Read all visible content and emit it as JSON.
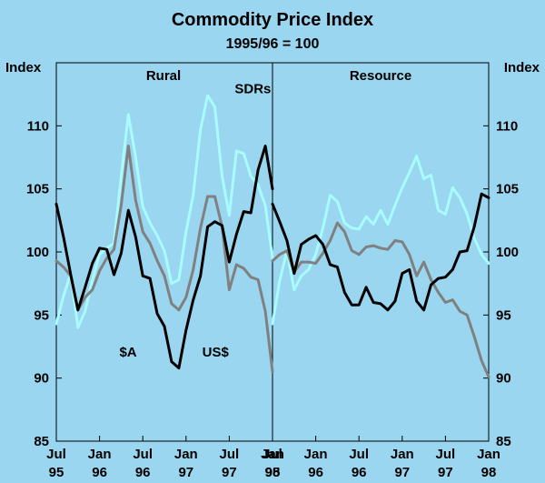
{
  "chart_data": {
    "type": "line",
    "title": "Commodity Price Index",
    "subtitle": "1995/96 = 100",
    "ylabel_left": "Index",
    "ylabel_right": "Index",
    "ylim": [
      85,
      115
    ],
    "yticks": [
      85,
      90,
      95,
      100,
      105,
      110
    ],
    "x_tick_labels": [
      {
        "month": "Jul",
        "year": "95"
      },
      {
        "month": "Jan",
        "year": "96"
      },
      {
        "month": "Jul",
        "year": "96"
      },
      {
        "month": "Jan",
        "year": "97"
      },
      {
        "month": "Jul",
        "year": "97"
      },
      {
        "month": "Jan",
        "year": "98"
      }
    ],
    "colors": {
      "background": "#9ad6f0",
      "aud": "#000000",
      "usd": "#808080",
      "sdr": "#a8fbff",
      "grid": "#000000"
    },
    "panels": [
      {
        "name": "Rural",
        "annotations": [
          {
            "text": "SDRs",
            "series": "SDRs"
          },
          {
            "text": "$A",
            "series": "$A"
          },
          {
            "text": "US$",
            "series": "US$"
          }
        ],
        "series": [
          {
            "name": "$A",
            "color": "#000000",
            "values": [
              103.8,
              101.2,
              98.2,
              95.4,
              97.2,
              99.1,
              100.3,
              100.2,
              98.2,
              99.9,
              103.3,
              101.2,
              98.1,
              97.9,
              95.1,
              94.1,
              91.3,
              90.8,
              93.8,
              96.2,
              98.1,
              102.0,
              102.4,
              102.1,
              99.2,
              101.4,
              103.2,
              103.1,
              106.5,
              108.4,
              105.0
            ]
          },
          {
            "name": "US$",
            "color": "#808080",
            "values": [
              99.3,
              98.8,
              98.1,
              95.4,
              96.4,
              97.0,
              98.5,
              99.5,
              100.2,
              103.7,
              108.4,
              104.1,
              101.6,
              100.7,
              99.3,
              98.1,
              95.9,
              95.4,
              96.4,
              98.6,
              101.9,
              104.4,
              104.4,
              102.0,
              97.0,
              99.0,
              98.7,
              98.0,
              97.8,
              95.3,
              90.5
            ]
          },
          {
            "name": "SDRs",
            "color": "#a8fbff",
            "values": [
              94.3,
              96.5,
              98.3,
              94.0,
              95.3,
              97.8,
              99.8,
              100.3,
              100.7,
              106.0,
              110.9,
              107.5,
              103.6,
              102.3,
              101.3,
              100.1,
              97.5,
              97.8,
              101.6,
              104.5,
              109.7,
              112.4,
              111.5,
              106.0,
              102.9,
              108.0,
              107.8,
              106.0,
              105.3,
              103.7,
              99.5
            ]
          }
        ]
      },
      {
        "name": "Resource",
        "annotations": [],
        "series": [
          {
            "name": "$A",
            "color": "#000000",
            "values": [
              103.8,
              102.4,
              100.9,
              98.3,
              100.6,
              101.0,
              101.3,
              100.6,
              99.0,
              98.8,
              96.8,
              95.8,
              95.8,
              97.2,
              96.0,
              95.9,
              95.4,
              96.1,
              98.3,
              98.6,
              96.1,
              95.4,
              97.4,
              97.9,
              98.0,
              98.6,
              100.0,
              100.1,
              102.0,
              104.6,
              104.3
            ]
          },
          {
            "name": "US$",
            "color": "#808080",
            "values": [
              99.3,
              99.8,
              100.1,
              98.4,
              99.2,
              99.2,
              99.1,
              99.9,
              100.9,
              102.3,
              101.6,
              100.1,
              99.8,
              100.4,
              100.5,
              100.3,
              100.2,
              100.9,
              100.8,
              99.8,
              98.1,
              99.2,
              97.8,
              96.8,
              96.0,
              96.2,
              95.3,
              95.0,
              93.3,
              91.4,
              90.1
            ]
          },
          {
            "name": "SDRs",
            "color": "#a8fbff",
            "values": [
              94.3,
              97.7,
              100.1,
              97.0,
              98.1,
              98.6,
              99.8,
              101.9,
              104.5,
              104.0,
              102.3,
              101.9,
              101.8,
              102.8,
              102.2,
              103.3,
              102.2,
              103.7,
              105.1,
              106.3,
              107.6,
              105.8,
              106.1,
              103.3,
              103.0,
              105.1,
              104.3,
              103.0,
              101.1,
              99.8,
              99.1
            ]
          }
        ]
      }
    ]
  }
}
